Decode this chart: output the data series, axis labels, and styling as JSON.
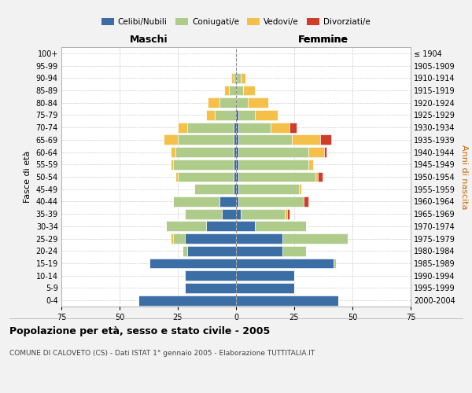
{
  "age_groups": [
    "0-4",
    "5-9",
    "10-14",
    "15-19",
    "20-24",
    "25-29",
    "30-34",
    "35-39",
    "40-44",
    "45-49",
    "50-54",
    "55-59",
    "60-64",
    "65-69",
    "70-74",
    "75-79",
    "80-84",
    "85-89",
    "90-94",
    "95-99",
    "100+"
  ],
  "birth_years": [
    "2000-2004",
    "1995-1999",
    "1990-1994",
    "1985-1989",
    "1980-1984",
    "1975-1979",
    "1970-1974",
    "1965-1969",
    "1960-1964",
    "1955-1959",
    "1950-1954",
    "1945-1949",
    "1940-1944",
    "1935-1939",
    "1930-1934",
    "1925-1929",
    "1920-1924",
    "1915-1919",
    "1910-1914",
    "1905-1909",
    "≤ 1904"
  ],
  "colors": {
    "celibi": "#3B6EA5",
    "coniugati": "#AECB8A",
    "vedovi": "#F5C04A",
    "divorziati": "#D13B2A"
  },
  "males": {
    "celibi": [
      42,
      22,
      22,
      37,
      21,
      22,
      13,
      6,
      7,
      1,
      1,
      1,
      1,
      1,
      1,
      0,
      0,
      0,
      0,
      0,
      0
    ],
    "coniugati": [
      0,
      0,
      0,
      0,
      2,
      5,
      17,
      16,
      20,
      17,
      24,
      26,
      25,
      24,
      20,
      9,
      7,
      3,
      1,
      0,
      0
    ],
    "vedovi": [
      0,
      0,
      0,
      0,
      0,
      1,
      0,
      0,
      0,
      0,
      1,
      1,
      2,
      6,
      4,
      4,
      5,
      2,
      1,
      0,
      0
    ],
    "divorziati": [
      0,
      0,
      0,
      0,
      0,
      0,
      0,
      0,
      0,
      0,
      0,
      0,
      0,
      0,
      0,
      0,
      0,
      0,
      0,
      0,
      0
    ]
  },
  "females": {
    "celibi": [
      44,
      25,
      25,
      42,
      20,
      20,
      8,
      2,
      1,
      1,
      1,
      1,
      1,
      1,
      1,
      1,
      0,
      0,
      0,
      0,
      0
    ],
    "coniugati": [
      0,
      0,
      0,
      1,
      10,
      28,
      22,
      19,
      28,
      26,
      33,
      30,
      30,
      23,
      14,
      7,
      5,
      3,
      2,
      0,
      0
    ],
    "vedovi": [
      0,
      0,
      0,
      0,
      0,
      0,
      0,
      1,
      0,
      1,
      1,
      2,
      7,
      12,
      8,
      10,
      9,
      5,
      2,
      0,
      0
    ],
    "divorziati": [
      0,
      0,
      0,
      0,
      0,
      0,
      0,
      1,
      2,
      0,
      2,
      0,
      1,
      5,
      3,
      0,
      0,
      0,
      0,
      0,
      0
    ]
  },
  "xlim": 75,
  "xticks": [
    -75,
    -50,
    -25,
    0,
    25,
    50,
    75
  ],
  "title": "Popolazione per età, sesso e stato civile - 2005",
  "subtitle": "COMUNE DI CALOVETO (CS) - Dati ISTAT 1° gennaio 2005 - Elaborazione TUTTITALIA.IT",
  "label_maschi": "Maschi",
  "label_femmine": "Femmine",
  "ylabel_left": "Fasce di età",
  "ylabel_right": "Anni di nascita",
  "bg_color": "#F2F2F2",
  "plot_bg_color": "#FFFFFF",
  "grid_color": "#CCCCCC",
  "legend_labels": [
    "Celibi/Nubili",
    "Coniugati/e",
    "Vedovi/e",
    "Divorziati/e"
  ],
  "legend_colors": [
    "#3B6EA5",
    "#AECB8A",
    "#F5C04A",
    "#D13B2A"
  ]
}
